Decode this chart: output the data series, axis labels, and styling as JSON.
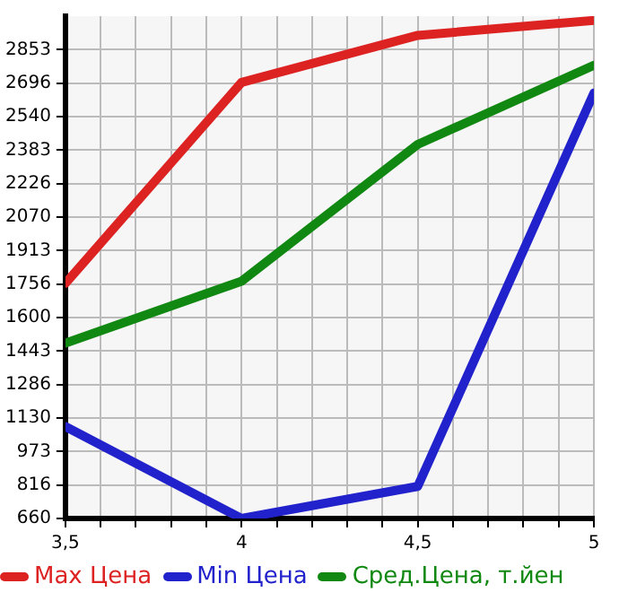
{
  "chart_data": {
    "type": "line",
    "x": [
      3.5,
      4,
      4.5,
      5
    ],
    "series": [
      {
        "name": "Max Цена",
        "color": "#dd2222",
        "values": [
          1760,
          2700,
          2920,
          2990
        ]
      },
      {
        "name": "Min Цена",
        "color": "#2222cc",
        "values": [
          1090,
          660,
          810,
          2650
        ]
      },
      {
        "name": "Сред.Цена, т.йен",
        "color": "#118811",
        "values": [
          1480,
          1770,
          2410,
          2780
        ]
      }
    ],
    "xlim": [
      3.5,
      5
    ],
    "xticks": [
      {
        "value": 3.5,
        "label": "3,5"
      },
      {
        "value": 3.6,
        "label": null
      },
      {
        "value": 3.7,
        "label": null
      },
      {
        "value": 3.8,
        "label": null
      },
      {
        "value": 3.9,
        "label": null
      },
      4,
      {
        "value": 4.1,
        "label": null
      },
      {
        "value": 4.2,
        "label": null
      },
      {
        "value": 4.3,
        "label": null
      },
      {
        "value": 4.4,
        "label": null
      },
      {
        "value": 4.5,
        "label": "4,5"
      },
      {
        "value": 4.6,
        "label": null
      },
      {
        "value": 4.7,
        "label": null
      },
      {
        "value": 4.8,
        "label": null
      },
      {
        "value": 4.9,
        "label": null
      },
      5
    ],
    "ylim": [
      660,
      3010
    ],
    "yticks": [
      660,
      816,
      973,
      1130,
      1286,
      1443,
      1600,
      1756,
      1913,
      2070,
      2226,
      2383,
      2540,
      2696,
      2853
    ],
    "grid": true,
    "legend": "bottom",
    "marker": "none",
    "line_style": "solid"
  }
}
